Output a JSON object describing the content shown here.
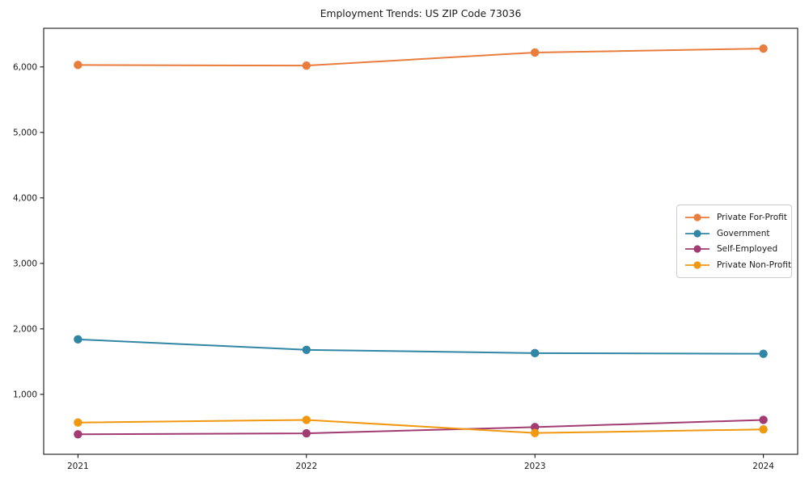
{
  "chart_data": {
    "type": "line",
    "title": "Employment Trends: US ZIP Code 73036",
    "xlabel": "",
    "ylabel": "",
    "grid": false,
    "legend_position": "right-center",
    "x": [
      2021,
      2022,
      2023,
      2024
    ],
    "xtick_labels": [
      "2021",
      "2022",
      "2023",
      "2024"
    ],
    "yticks": [
      1000,
      2000,
      3000,
      4000,
      5000,
      6000
    ],
    "ytick_labels": [
      "1,000",
      "2,000",
      "3,000",
      "4,000",
      "5,000",
      "6,000"
    ],
    "xlim": [
      2020.85,
      2024.15
    ],
    "ylim": [
      85,
      6590
    ],
    "series": [
      {
        "name": "Private For-Profit",
        "color": "#e87d3e",
        "values": [
          6030,
          6020,
          6220,
          6280
        ]
      },
      {
        "name": "Government",
        "color": "#3186a6",
        "values": [
          1840,
          1680,
          1630,
          1620
        ]
      },
      {
        "name": "Self-Employed",
        "color": "#a23b72",
        "values": [
          390,
          405,
          500,
          610
        ]
      },
      {
        "name": "Private Non-Profit",
        "color": "#f0980f",
        "values": [
          570,
          610,
          410,
          465
        ]
      }
    ],
    "axis_color": "#000000",
    "tick_label_color": "#1a1a1a"
  }
}
